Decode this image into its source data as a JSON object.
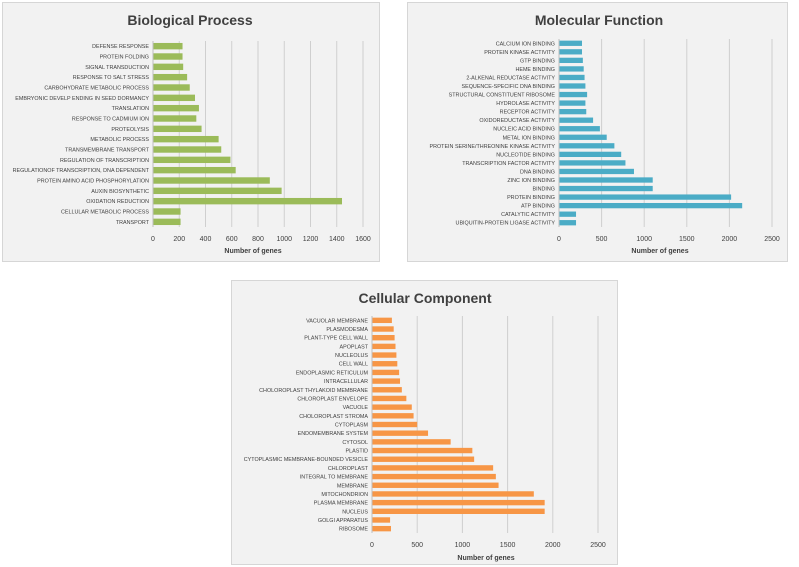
{
  "chart_data": [
    {
      "type": "bar",
      "orientation": "horizontal",
      "title": "Biological Process",
      "xlabel": "Number of genes",
      "ylabel": "",
      "xlim": [
        0,
        1600
      ],
      "xticks": [
        0,
        200,
        400,
        600,
        800,
        1000,
        1200,
        1400,
        1600
      ],
      "color": "#9bbb59",
      "grid": true,
      "categories": [
        "DEFENSE RESPONSE",
        "PROTEIN FOLDING",
        "SIGNAL TRANSDUCTION",
        "RESPONSE TO SALT STRESS",
        "CARBOHYDRATE METABOLIC PROCESS",
        "EMBRYONIC DEVELP ENDING IN SEED DORMANCY",
        "TRANSLATION",
        "RESPONSE TO CADMIUM ION",
        "PROTEOLYSIS",
        "METABOLIC PROCESS",
        "TRANSMEMBRANE TRANSPORT",
        "REGULATION OF TRANSCRIPTION",
        "REGULATIONOF TRANSCRIPTION, DNA DEPENDENT",
        "PROTEIN AMINO ACID PHOSPHORYLATION",
        "AUXIN BIOSYNTHETIC",
        "OXIDATION REDUCTION",
        "CELLULAR METABOLIC PROCESS",
        "TRANSPORT"
      ],
      "values": [
        225,
        225,
        230,
        260,
        280,
        320,
        350,
        330,
        370,
        500,
        520,
        590,
        630,
        890,
        980,
        1440,
        210,
        210
      ]
    },
    {
      "type": "bar",
      "orientation": "horizontal",
      "title": "Molecular Function",
      "xlabel": "Number of genes",
      "ylabel": "",
      "xlim": [
        0,
        2500
      ],
      "xticks": [
        0,
        500,
        1000,
        1500,
        2000,
        2500
      ],
      "color": "#4bacc6",
      "grid": true,
      "categories": [
        "CALCIUM ION BINDING",
        "PROTEIN KINASE ACTIVITY",
        "GTP BINDING",
        "HEME BINDING",
        "2-ALKENAL REDUCTASE ACTIVITY",
        "SEQUENCE-SPECIFIC DNA BINDING",
        "STRUCTURAL CONSTITUENT RIBOSOME",
        "HYDROLASE ACTIVITY",
        "RECEPTOR ACTIVITY",
        "OXIDOREDUCTASE ACTIVITY",
        "NUCLEIC ACID BINDING",
        "METAL ION BINDING",
        "PROTEIN SERINE/THREONINE KINASE ACTIVITY",
        "NUCLEOTIDE BINDING",
        "TRANSCRIPTION FACTOR ACTIVITY",
        "DNA BINDING",
        "ZINC ION BINDING",
        "BINDING",
        "PROTEIN BINDING",
        "ATP BINDING",
        "CATALYTIC ACTIVITY",
        "UBIQUITIN-PROTEIN LIGASE ACTIVITY"
      ],
      "values": [
        270,
        270,
        280,
        290,
        300,
        310,
        330,
        310,
        320,
        400,
        480,
        560,
        650,
        730,
        780,
        880,
        1100,
        1100,
        2020,
        2150,
        200,
        200
      ]
    },
    {
      "type": "bar",
      "orientation": "horizontal",
      "title": "Cellular Component",
      "xlabel": "Number of genes",
      "ylabel": "",
      "xlim": [
        0,
        2500
      ],
      "xticks": [
        0,
        500,
        1000,
        1500,
        2000,
        2500
      ],
      "color": "#f79646",
      "grid": true,
      "categories": [
        "VACUOLAR MEMBRANE",
        "PLASMODESMA",
        "PLANT-TYPE CELL WALL",
        "APOPLAST",
        "NUCLEOLUS",
        "CELL WALL",
        "ENDOPLASMIC RETICULUM",
        "INTRACELLULAR",
        "CHOLOROPLAST THYLAKOID MEMBRANE",
        "CHLOROPLAST ENVELOPE",
        "VACUOLE",
        "CHOLOROPLAST STROMA",
        "CYTOPLASM",
        "ENDOMEMBRANE SYSTEM",
        "CYTOSOL",
        "PLASTID",
        "CYTOPLASMIC MEMBRANE-BOUNDED VESICLE",
        "CHLOROPLAST",
        "INTEGRAL TO MEMBRANE",
        "MEMBRANE",
        "MITOCHONDRION",
        "PLASMA MEMBRANE",
        "NUCLEUS",
        "GOLGI APPARATUS",
        "RIBOSOME"
      ],
      "values": [
        220,
        240,
        250,
        260,
        270,
        280,
        300,
        310,
        330,
        380,
        440,
        460,
        500,
        620,
        870,
        1110,
        1130,
        1340,
        1370,
        1400,
        1790,
        1910,
        1910,
        200,
        210
      ]
    }
  ]
}
